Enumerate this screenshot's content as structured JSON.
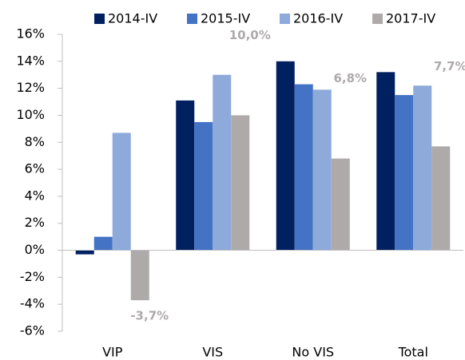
{
  "chart_data": {
    "type": "bar",
    "categories": [
      "VIP",
      "VIS",
      "No VIS",
      "Total"
    ],
    "series": [
      {
        "name": "2014-IV",
        "color": "#002060",
        "values": [
          -0.3,
          11.1,
          14.0,
          13.2
        ]
      },
      {
        "name": "2015-IV",
        "color": "#4472c4",
        "values": [
          1.0,
          9.5,
          12.3,
          11.5
        ]
      },
      {
        "name": "2016-IV",
        "color": "#8eaadb",
        "values": [
          8.7,
          13.0,
          11.9,
          12.2
        ]
      },
      {
        "name": "2017-IV",
        "color": "#aeaaaa",
        "values": [
          -3.7,
          10.0,
          6.8,
          7.7
        ],
        "value_labels": [
          "-3,7%",
          "10,0%",
          "6,8%",
          "7,7%"
        ]
      }
    ],
    "ylim": [
      -6,
      16
    ],
    "yticks": [
      {
        "value": -6,
        "label": "-6%"
      },
      {
        "value": -4,
        "label": "-4%"
      },
      {
        "value": -2,
        "label": "-2%"
      },
      {
        "value": 0,
        "label": "0%"
      },
      {
        "value": 2,
        "label": "2%"
      },
      {
        "value": 4,
        "label": "4%"
      },
      {
        "value": 6,
        "label": "6%"
      },
      {
        "value": 8,
        "label": "8%"
      },
      {
        "value": 10,
        "label": "10%"
      },
      {
        "value": 12,
        "label": "12%"
      },
      {
        "value": 14,
        "label": "14%"
      },
      {
        "value": 16,
        "label": "16%"
      }
    ],
    "grid": false,
    "legend": "top"
  }
}
